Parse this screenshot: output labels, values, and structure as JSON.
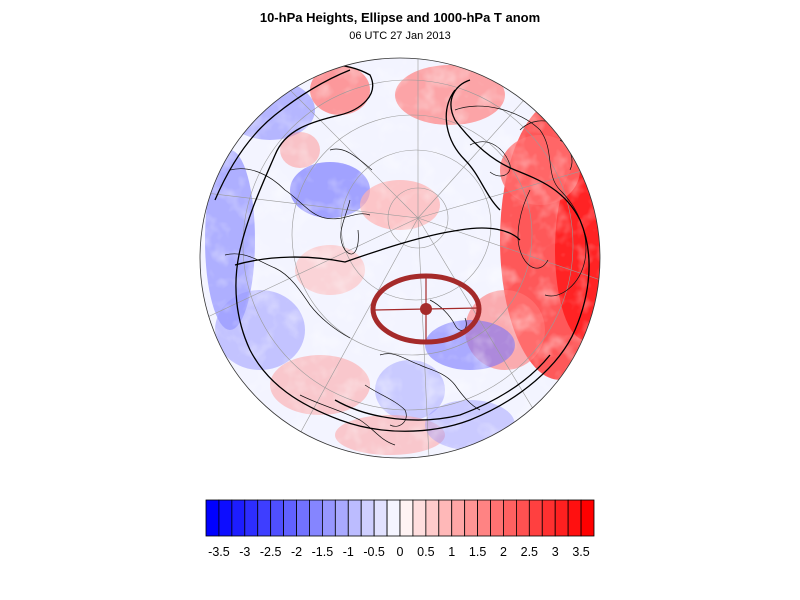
{
  "title": "10-hPa Heights, Ellipse and 1000-hPa T anom",
  "subtitle": "06 UTC 27 Jan 2013",
  "projection": "polar orthographic, north pole",
  "colors": {
    "background": "#ffffff",
    "ellipse": "#a52a2a",
    "contour": "#000000",
    "coastline": "#111111",
    "graticule": "#9a9a9a"
  },
  "colorbar": {
    "orientation": "horizontal",
    "levels": [
      -3.5,
      -3.25,
      -3,
      -2.75,
      -2.5,
      -2.25,
      -2,
      -1.75,
      -1.5,
      -1.25,
      -1,
      -0.75,
      -0.5,
      -0.25,
      0,
      0.25,
      0.5,
      0.75,
      1,
      1.25,
      1.5,
      1.75,
      2,
      2.25,
      2.5,
      2.75,
      3,
      3.25,
      3.5
    ],
    "tick_labels": [
      "-3.5",
      "-3",
      "-2.5",
      "-2",
      "-1.5",
      "-1",
      "-0.5",
      "0",
      "0.5",
      "1",
      "1.5",
      "2",
      "2.5",
      "3",
      "3.5"
    ],
    "color_min": "#0000ff",
    "color_mid": "#ffffff",
    "color_max": "#ff0000"
  }
}
